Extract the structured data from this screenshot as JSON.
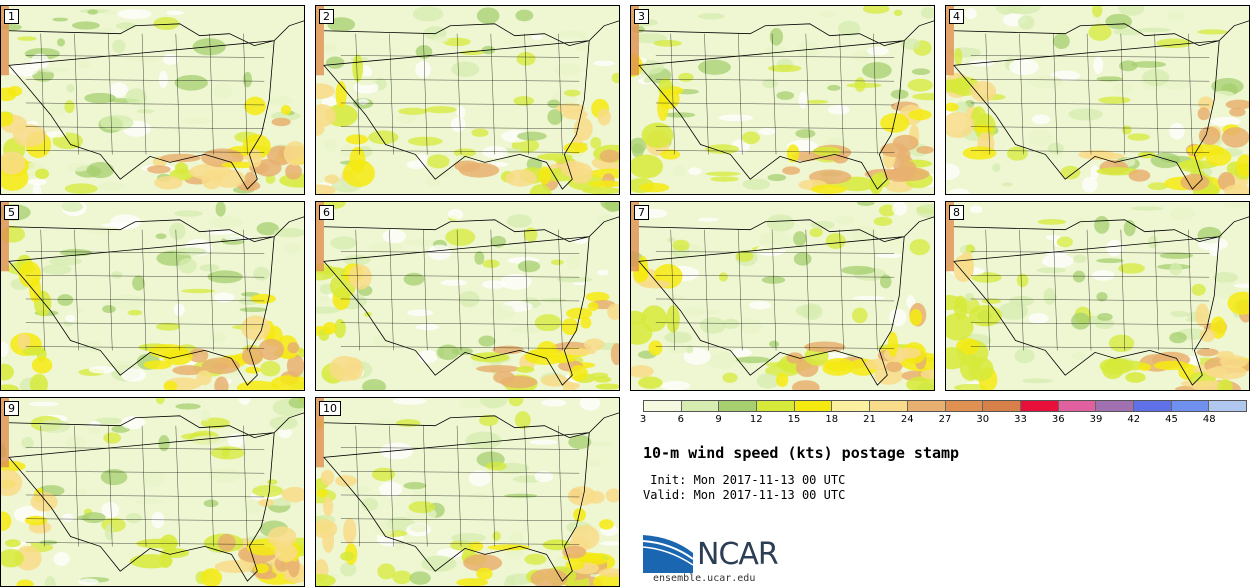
{
  "panels": [
    {
      "label": "1"
    },
    {
      "label": "2"
    },
    {
      "label": "3"
    },
    {
      "label": "4"
    },
    {
      "label": "5"
    },
    {
      "label": "6"
    },
    {
      "label": "7"
    },
    {
      "label": "8"
    },
    {
      "label": "9"
    },
    {
      "label": "10"
    }
  ],
  "colorbar": {
    "ticks": [
      "3",
      "6",
      "9",
      "12",
      "15",
      "18",
      "21",
      "24",
      "27",
      "30",
      "33",
      "36",
      "39",
      "42",
      "45",
      "48"
    ],
    "colors": [
      "#f4f9e0",
      "#d6ecb0",
      "#a6cf6f",
      "#d6ea3a",
      "#f4ea10",
      "#faf0a0",
      "#f8dc8a",
      "#e8b070",
      "#e09050",
      "#d8804a",
      "#e8103a",
      "#e060a0",
      "#a070b0",
      "#6070e8",
      "#7090f0",
      "#b0c8f0"
    ]
  },
  "title": "10-m wind speed (kts) postage stamp",
  "init": " Init: Mon 2017-11-13 00 UTC",
  "valid": "Valid: Mon 2017-11-13 00 UTC",
  "logo_text": "NCAR",
  "url": "ensemble.ucar.edu"
}
